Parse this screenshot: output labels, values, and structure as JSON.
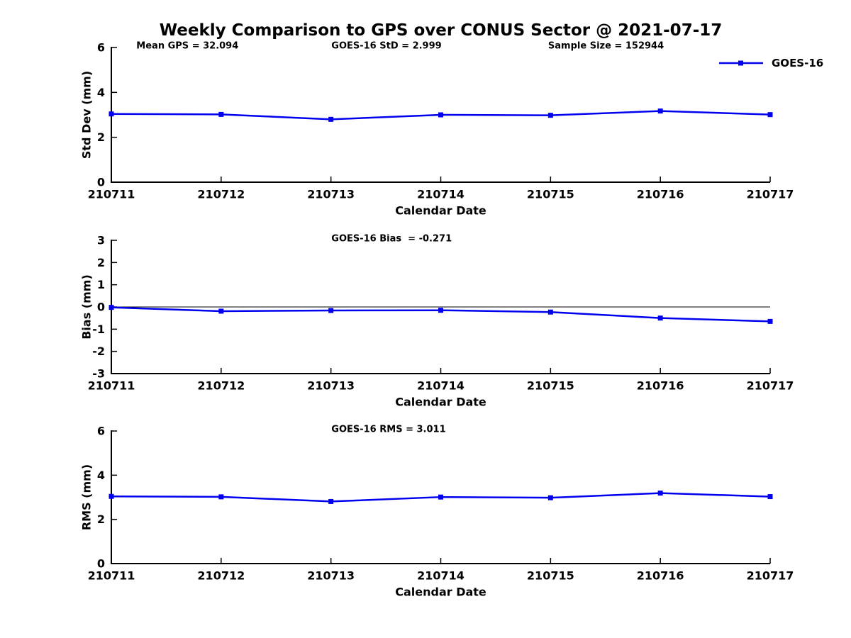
{
  "title": "Weekly Comparison to GPS over CONUS Sector @ 2021-07-17",
  "legend": {
    "label": "GOES-16"
  },
  "colors": {
    "line": "#0000EE",
    "axis": "#000000",
    "text": "#000000"
  },
  "chart_data": [
    {
      "type": "line",
      "categories": [
        "210711",
        "210712",
        "210713",
        "210714",
        "210715",
        "210716",
        "210717"
      ],
      "series": [
        {
          "name": "GOES-16",
          "values": [
            3.04,
            3.02,
            2.8,
            3.0,
            2.98,
            3.17,
            3.01
          ]
        }
      ],
      "title": "",
      "xlabel": "Calendar Date",
      "ylabel": "Std Dev (mm)",
      "ylim": [
        0,
        6
      ],
      "yticks": [
        0,
        2,
        4,
        6
      ],
      "grid": false,
      "legend_position": "upper-right-outside",
      "zero_line": false,
      "annotations": [
        {
          "text": "Mean GPS = 32.094",
          "xfrac": 0.038
        },
        {
          "text": "GOES-16 StD = 2.999",
          "xfrac": 0.334
        },
        {
          "text": "Sample Size = 152944",
          "xfrac": 0.663
        }
      ]
    },
    {
      "type": "line",
      "categories": [
        "210711",
        "210712",
        "210713",
        "210714",
        "210715",
        "210716",
        "210717"
      ],
      "series": [
        {
          "name": "GOES-16",
          "values": [
            -0.02,
            -0.19,
            -0.16,
            -0.15,
            -0.23,
            -0.5,
            -0.65
          ]
        }
      ],
      "title": "",
      "xlabel": "Calendar Date",
      "ylabel": "Bias (mm)",
      "ylim": [
        -3,
        3
      ],
      "yticks": [
        -3,
        -2,
        -1,
        0,
        1,
        2,
        3
      ],
      "grid": false,
      "zero_line": true,
      "annotations": [
        {
          "text": "GOES-16 Bias  = -0.271",
          "xfrac": 0.334
        }
      ]
    },
    {
      "type": "line",
      "categories": [
        "210711",
        "210712",
        "210713",
        "210714",
        "210715",
        "210716",
        "210717"
      ],
      "series": [
        {
          "name": "GOES-16",
          "values": [
            3.04,
            3.02,
            2.81,
            3.01,
            2.98,
            3.19,
            3.03
          ]
        }
      ],
      "title": "",
      "xlabel": "Calendar Date",
      "ylabel": "RMS (mm)",
      "ylim": [
        0,
        6
      ],
      "yticks": [
        0,
        2,
        4,
        6
      ],
      "grid": false,
      "zero_line": false,
      "annotations": [
        {
          "text": "GOES-16 RMS = 3.011",
          "xfrac": 0.334
        }
      ]
    }
  ]
}
